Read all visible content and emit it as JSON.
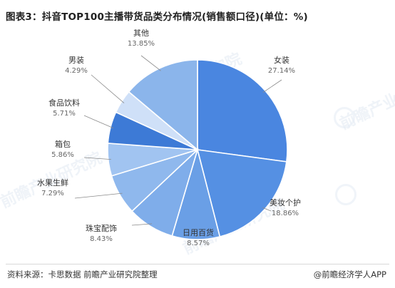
{
  "title": "图表3：抖音TOP100主播带货品类分布情况(销售额口径)(单位：%)",
  "chart_data": {
    "type": "pie",
    "title": "图表3：抖音TOP100主播带货品类分布情况(销售额口径)(单位：%)",
    "unit": "%",
    "labels": [
      "女装",
      "美妆个护",
      "日用百货",
      "珠宝配饰",
      "水果生鲜",
      "箱包",
      "食品饮料",
      "男装",
      "其他"
    ],
    "values": [
      27.14,
      18.86,
      8.57,
      8.43,
      7.29,
      5.86,
      5.71,
      4.29,
      13.85
    ],
    "value_labels": [
      "27.14%",
      "18.86%",
      "8.57%",
      "8.43%",
      "7.29%",
      "5.86%",
      "5.71%",
      "4.29%",
      "13.85%"
    ],
    "colors": [
      "#4a86e0",
      "#5590e3",
      "#6a9fe6",
      "#7fadea",
      "#8fb8ed",
      "#a1c4f1",
      "#3d7ad6",
      "#cfe0f8",
      "#8bb5eb"
    ],
    "start_angle_deg": 0,
    "direction": "clockwise",
    "legend": "none"
  },
  "footer": {
    "source": "资料来源：卡思数据 前瞻产业研究院整理",
    "brand": "@前瞻经济学人APP"
  },
  "watermark": {
    "text": "前瞻产业研究院"
  }
}
